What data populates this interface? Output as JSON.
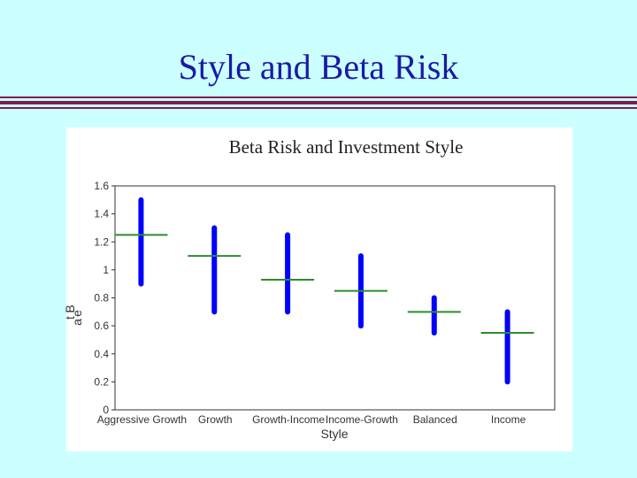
{
  "slide": {
    "title": "Style and Beta Risk",
    "title_color": "#1a1aa6",
    "background": "#ccffff",
    "rule_color": "#7a1f4f"
  },
  "colors": {
    "range_bar": "#0000ff",
    "mean_marker": "#2e8b2e",
    "axis": "#333333",
    "panel": "#ffffff"
  },
  "chart_data": {
    "type": "bar",
    "title": "Beta Risk and Investment Style",
    "xlabel": "Style",
    "ylabel": "Beta",
    "ylim": [
      0,
      1.6
    ],
    "yticks": [
      0,
      0.2,
      0.4,
      0.6,
      0.8,
      1,
      1.2,
      1.4,
      1.6
    ],
    "categories": [
      "Aggressive Growth",
      "Growth",
      "Growth-Income",
      "Income-Growth",
      "Balanced",
      "Income"
    ],
    "series": [
      {
        "name": "",
        "kind": "range",
        "low": [
          0.9,
          0.7,
          0.7,
          0.6,
          0.55,
          0.2
        ],
        "high": [
          1.5,
          1.3,
          1.25,
          1.1,
          0.8,
          0.7
        ]
      },
      {
        "name": "",
        "kind": "marker",
        "values": [
          1.25,
          1.1,
          0.93,
          0.85,
          0.7,
          0.55
        ]
      }
    ],
    "grid": false,
    "legend": "none"
  }
}
